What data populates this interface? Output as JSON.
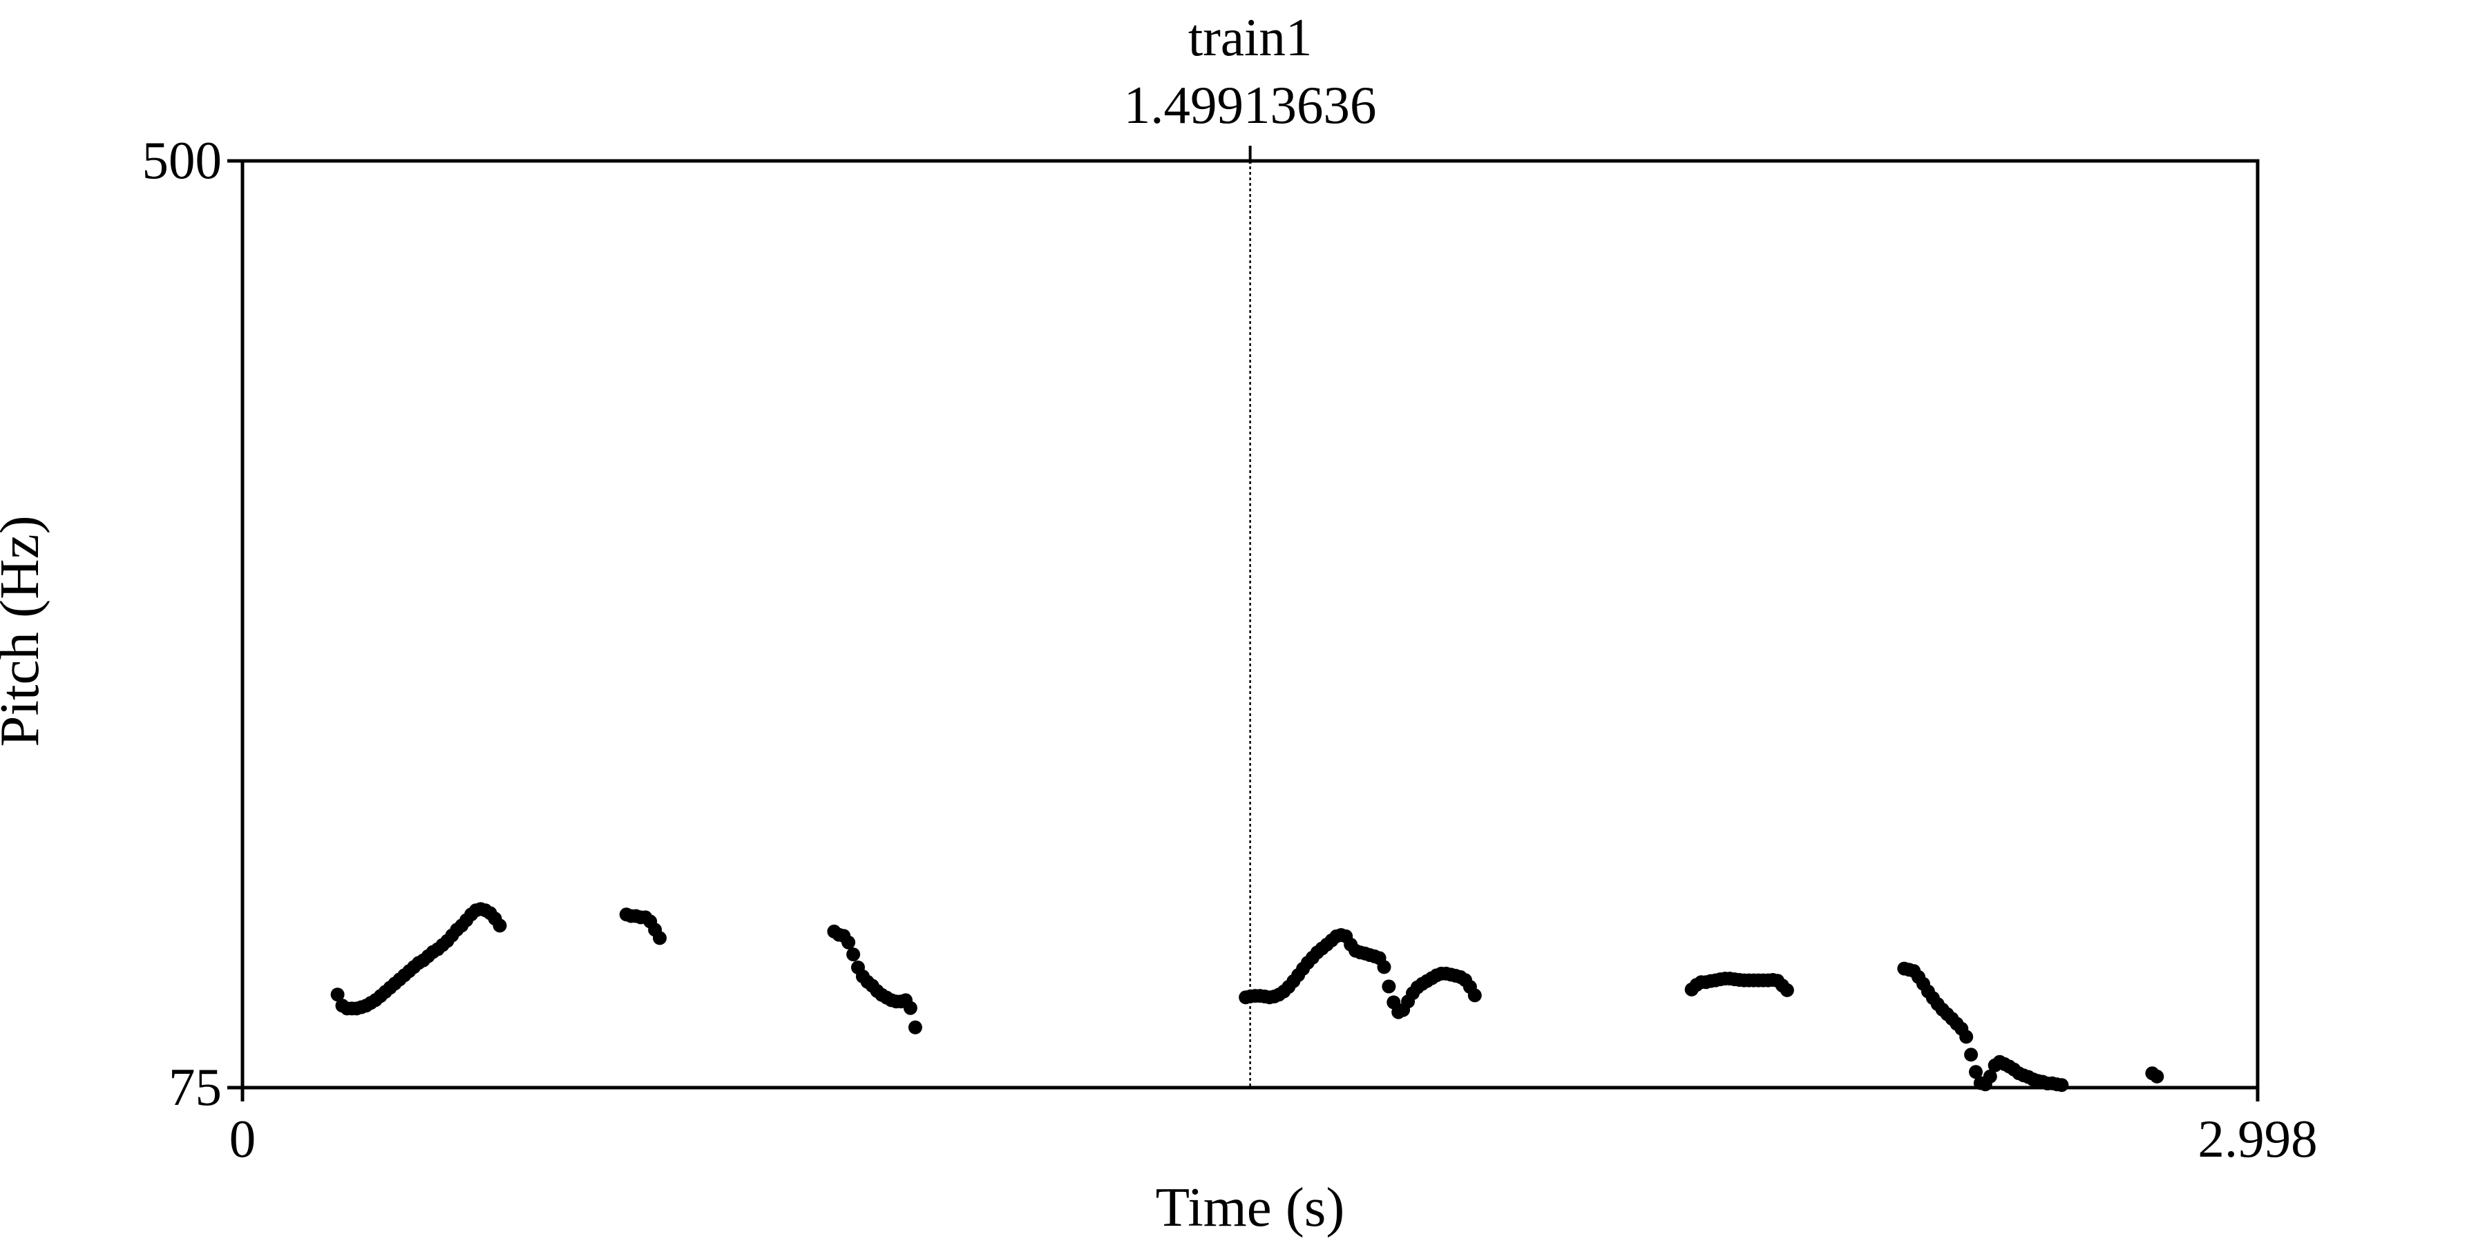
{
  "chart_data": {
    "type": "scatter",
    "xlabel": "Time (s)",
    "ylabel": "Pitch (Hz)",
    "xlim": [
      0,
      2.998
    ],
    "ylim": [
      75,
      500
    ],
    "x_tick_labels": [
      "0",
      "2.998"
    ],
    "y_tick_labels": [
      "75",
      "500"
    ],
    "grid": false,
    "marker": {
      "label_name": "train1",
      "time_label": "1.49913636",
      "time": 1.49913636
    },
    "colors": {
      "points": "#000000",
      "frame": "#000000"
    },
    "points": [
      [
        0.1414,
        117.7
      ],
      [
        0.1485,
        112.6
      ],
      [
        0.1556,
        111.3
      ],
      [
        0.1627,
        111.3
      ],
      [
        0.1698,
        111.3
      ],
      [
        0.1769,
        111.9
      ],
      [
        0.184,
        112.6
      ],
      [
        0.1911,
        113.9
      ],
      [
        0.1982,
        115.2
      ],
      [
        0.2053,
        117.0
      ],
      [
        0.2124,
        118.9
      ],
      [
        0.2195,
        120.8
      ],
      [
        0.2266,
        122.7
      ],
      [
        0.2337,
        124.6
      ],
      [
        0.2408,
        126.5
      ],
      [
        0.2479,
        128.4
      ],
      [
        0.255,
        130.3
      ],
      [
        0.2621,
        132.2
      ],
      [
        0.2692,
        133.4
      ],
      [
        0.2763,
        135.3
      ],
      [
        0.2834,
        137.2
      ],
      [
        0.2905,
        138.5
      ],
      [
        0.2976,
        140.4
      ],
      [
        0.3047,
        142.3
      ],
      [
        0.3118,
        144.8
      ],
      [
        0.3189,
        147.4
      ],
      [
        0.326,
        149.3
      ],
      [
        0.3331,
        151.8
      ],
      [
        0.3402,
        154.4
      ],
      [
        0.3473,
        156.3
      ],
      [
        0.3544,
        156.9
      ],
      [
        0.3615,
        156.3
      ],
      [
        0.3686,
        155.0
      ],
      [
        0.3757,
        152.5
      ],
      [
        0.3828,
        149.3
      ],
      [
        0.5711,
        154.4
      ],
      [
        0.5782,
        153.7
      ],
      [
        0.5853,
        153.7
      ],
      [
        0.5924,
        153.1
      ],
      [
        0.5995,
        153.1
      ],
      [
        0.6066,
        151.2
      ],
      [
        0.6137,
        147.4
      ],
      [
        0.6208,
        143.6
      ],
      [
        0.8802,
        146.6
      ],
      [
        0.8873,
        145.1
      ],
      [
        0.8944,
        144.6
      ],
      [
        0.9015,
        141.6
      ],
      [
        0.9086,
        136.1
      ],
      [
        0.9157,
        130.1
      ],
      [
        0.9228,
        126.0
      ],
      [
        0.9299,
        123.5
      ],
      [
        0.937,
        121.7
      ],
      [
        0.9441,
        119.3
      ],
      [
        0.9512,
        117.5
      ],
      [
        0.9583,
        116.3
      ],
      [
        0.9654,
        115.1
      ],
      [
        0.9725,
        114.5
      ],
      [
        0.9796,
        114.5
      ],
      [
        0.9867,
        115.1
      ],
      [
        0.9938,
        111.5
      ],
      [
        1.0009,
        102.6
      ],
      [
        1.4925,
        116.4
      ],
      [
        1.4996,
        116.9
      ],
      [
        1.5067,
        117.1
      ],
      [
        1.5138,
        117.1
      ],
      [
        1.5209,
        116.8
      ],
      [
        1.528,
        116.4
      ],
      [
        1.5351,
        116.8
      ],
      [
        1.5422,
        117.7
      ],
      [
        1.5493,
        119.1
      ],
      [
        1.5564,
        121.2
      ],
      [
        1.5635,
        123.8
      ],
      [
        1.5706,
        126.6
      ],
      [
        1.5777,
        129.5
      ],
      [
        1.5848,
        132.3
      ],
      [
        1.5919,
        134.6
      ],
      [
        1.599,
        137.0
      ],
      [
        1.6061,
        138.8
      ],
      [
        1.6132,
        140.6
      ],
      [
        1.6203,
        142.5
      ],
      [
        1.6274,
        144.4
      ],
      [
        1.6345,
        145.0
      ],
      [
        1.6416,
        144.4
      ],
      [
        1.6487,
        140.6
      ],
      [
        1.6558,
        137.8
      ],
      [
        1.6629,
        137.0
      ],
      [
        1.67,
        136.5
      ],
      [
        1.6771,
        135.8
      ],
      [
        1.6842,
        135.2
      ],
      [
        1.6913,
        134.4
      ],
      [
        1.6984,
        130.3
      ],
      [
        1.7055,
        121.4
      ],
      [
        1.7126,
        114.1
      ],
      [
        1.7197,
        109.6
      ],
      [
        1.7268,
        110.6
      ],
      [
        1.7339,
        114.5
      ],
      [
        1.741,
        118.3
      ],
      [
        1.7481,
        121.0
      ],
      [
        1.7552,
        122.6
      ],
      [
        1.7623,
        123.9
      ],
      [
        1.7694,
        125.2
      ],
      [
        1.7765,
        126.5
      ],
      [
        1.7836,
        127.3
      ],
      [
        1.7907,
        127.3
      ],
      [
        1.7978,
        126.8
      ],
      [
        1.8049,
        126.3
      ],
      [
        1.812,
        125.7
      ],
      [
        1.8191,
        124.3
      ],
      [
        1.8262,
        121.2
      ],
      [
        1.8333,
        117.3
      ],
      [
        2.156,
        120.0
      ],
      [
        2.1631,
        122.1
      ],
      [
        2.1702,
        123.4
      ],
      [
        2.1773,
        123.4
      ],
      [
        2.1844,
        123.9
      ],
      [
        2.1915,
        124.2
      ],
      [
        2.1986,
        124.7
      ],
      [
        2.2057,
        125.0
      ],
      [
        2.2128,
        125.0
      ],
      [
        2.2199,
        124.7
      ],
      [
        2.227,
        124.4
      ],
      [
        2.2341,
        124.2
      ],
      [
        2.2412,
        124.2
      ],
      [
        2.2483,
        124.2
      ],
      [
        2.2554,
        124.2
      ],
      [
        2.2625,
        124.2
      ],
      [
        2.2696,
        124.2
      ],
      [
        2.2767,
        124.4
      ],
      [
        2.2838,
        124.0
      ],
      [
        2.2909,
        121.8
      ],
      [
        2.298,
        119.7
      ],
      [
        2.4722,
        129.6
      ],
      [
        2.4793,
        129.1
      ],
      [
        2.4864,
        128.5
      ],
      [
        2.4935,
        125.7
      ],
      [
        2.5006,
        122.6
      ],
      [
        2.5077,
        119.1
      ],
      [
        2.5148,
        116.1
      ],
      [
        2.5219,
        113.3
      ],
      [
        2.529,
        110.8
      ],
      [
        2.5361,
        108.7
      ],
      [
        2.5432,
        106.6
      ],
      [
        2.5503,
        104.3
      ],
      [
        2.5574,
        102.0
      ],
      [
        2.5645,
        98.3
      ],
      [
        2.5716,
        90.1
      ],
      [
        2.5787,
        82.2
      ],
      [
        2.5858,
        77.1
      ],
      [
        2.5929,
        76.5
      ],
      [
        2.6,
        80.1
      ],
      [
        2.6071,
        85.2
      ],
      [
        2.6142,
        86.8
      ],
      [
        2.6213,
        85.8
      ],
      [
        2.6284,
        84.7
      ],
      [
        2.6355,
        83.3
      ],
      [
        2.6426,
        81.6
      ],
      [
        2.6497,
        80.6
      ],
      [
        2.6568,
        79.9
      ],
      [
        2.6639,
        78.8
      ],
      [
        2.671,
        78.1
      ],
      [
        2.6781,
        77.7
      ],
      [
        2.6852,
        76.9
      ],
      [
        2.6923,
        77.0
      ],
      [
        2.6994,
        76.5
      ],
      [
        2.7065,
        76.2
      ],
      [
        2.8412,
        81.6
      ],
      [
        2.8483,
        80.1
      ]
    ]
  }
}
